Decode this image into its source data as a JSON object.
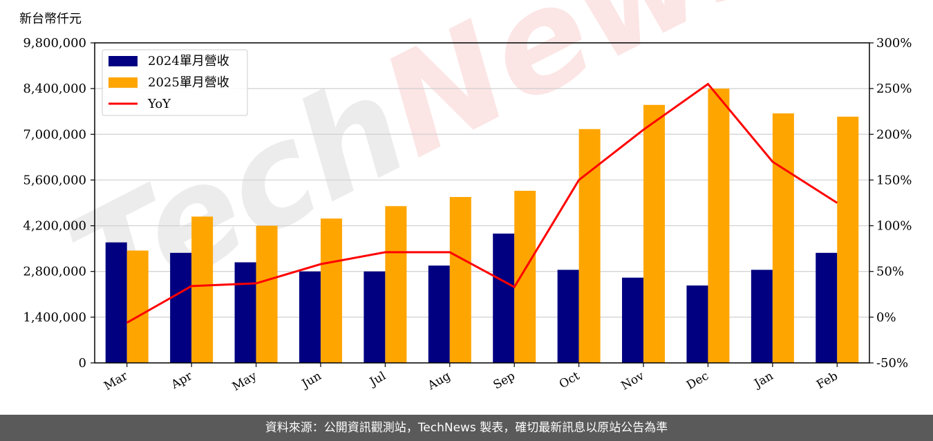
{
  "chart_data": {
    "type": "bar",
    "unit_label": "新台幣仟元",
    "categories": [
      "Mar",
      "Apr",
      "May",
      "Jun",
      "Jul",
      "Aug",
      "Sep",
      "Oct",
      "Nov",
      "Dec",
      "Jan",
      "Feb"
    ],
    "series": [
      {
        "name": "2024單月營收",
        "color": "#000080",
        "values": [
          3690000,
          3370000,
          3080000,
          2800000,
          2800000,
          2980000,
          3960000,
          2850000,
          2610000,
          2370000,
          2850000,
          3370000
        ]
      },
      {
        "name": "2025單月營收",
        "color": "#ffa500",
        "values": [
          3440000,
          4480000,
          4200000,
          4420000,
          4800000,
          5080000,
          5270000,
          7160000,
          7900000,
          8400000,
          7640000,
          7540000
        ]
      }
    ],
    "line_series": {
      "name": "YoY",
      "color": "#ff0000",
      "values": [
        -6,
        34,
        37,
        58,
        71,
        71,
        33,
        150,
        205,
        255,
        170,
        125
      ]
    },
    "y_left": {
      "min": 0,
      "max": 9800000,
      "ticks": [
        0,
        1400000,
        2800000,
        4200000,
        5600000,
        7000000,
        8400000,
        9800000
      ],
      "tick_labels": [
        "0",
        "1,400,000",
        "2,800,000",
        "4,200,000",
        "5,600,000",
        "7,000,000",
        "8,400,000",
        "9,800,000"
      ]
    },
    "y_right": {
      "min": -50,
      "max": 300,
      "ticks": [
        -50,
        0,
        50,
        100,
        150,
        200,
        250,
        300
      ],
      "tick_labels": [
        "-50%",
        "0%",
        "50%",
        "100%",
        "150%",
        "200%",
        "250%",
        "300%"
      ]
    },
    "grid": true,
    "legend_position": "top-left"
  },
  "watermark": "TechNews",
  "footer": "資料來源：公開資訊觀測站，TechNews 製表，確切最新訊息以原站公告為準"
}
